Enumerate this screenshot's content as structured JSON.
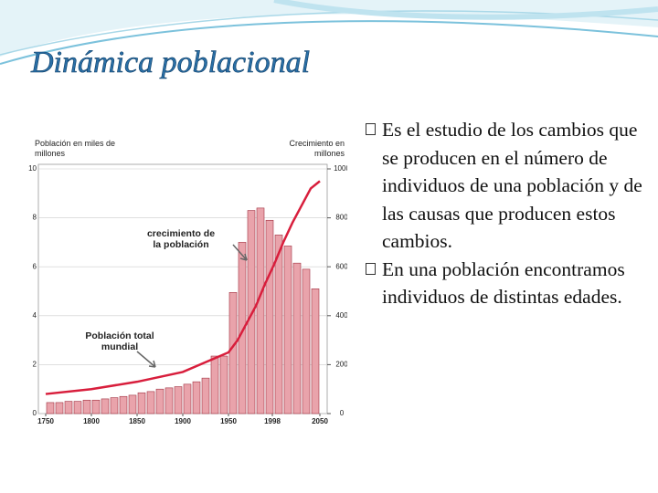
{
  "title": "Dinámica poblacional",
  "bullets": [
    "Es el estudio de los cambios que se producen en el número de individuos de una población y de las causas que producen estos cambios.",
    "En una población encontramos individuos de distintas edades."
  ],
  "chart_data": {
    "type": "bar",
    "y_label": "Población en miles de millones",
    "y2_label": "Crecimiento en millones",
    "annotations": [
      "crecimiento de la población",
      "Población total mundial"
    ],
    "xlim": [
      1750,
      2050
    ],
    "xticks": [
      1750,
      1800,
      1850,
      1900,
      1950,
      1998,
      2050
    ],
    "ylim": [
      0,
      10
    ],
    "yticks": [
      0,
      2,
      4,
      6,
      8,
      10
    ],
    "y2lim": [
      0,
      1000
    ],
    "y2ticks": [
      0,
      200,
      400,
      600,
      800,
      1000
    ],
    "grid": true,
    "series": [
      {
        "type": "bar",
        "axis": "y2",
        "color": "#e9a3ab",
        "x": [
          1750,
          1760,
          1770,
          1780,
          1790,
          1800,
          1810,
          1820,
          1830,
          1840,
          1850,
          1860,
          1870,
          1880,
          1890,
          1900,
          1910,
          1920,
          1930,
          1940,
          1950,
          1960,
          1970,
          1980,
          1990,
          2000,
          2010,
          2020,
          2030,
          2040
        ],
        "values": [
          45,
          45,
          50,
          50,
          55,
          55,
          60,
          65,
          70,
          75,
          85,
          90,
          100,
          105,
          110,
          120,
          130,
          145,
          235,
          235,
          495,
          700,
          830,
          840,
          790,
          730,
          685,
          615,
          590,
          510
        ]
      },
      {
        "type": "line",
        "color": "#d81e3c",
        "x": [
          1750,
          1800,
          1850,
          1900,
          1950,
          1960,
          1970,
          1980,
          1990,
          2000,
          2010,
          2020,
          2030,
          2040,
          2050
        ],
        "values": [
          0.8,
          1,
          1.3,
          1.7,
          2.5,
          3,
          3.7,
          4.4,
          5.3,
          6.1,
          7,
          7.8,
          8.5,
          9.2,
          9.5
        ]
      }
    ]
  }
}
